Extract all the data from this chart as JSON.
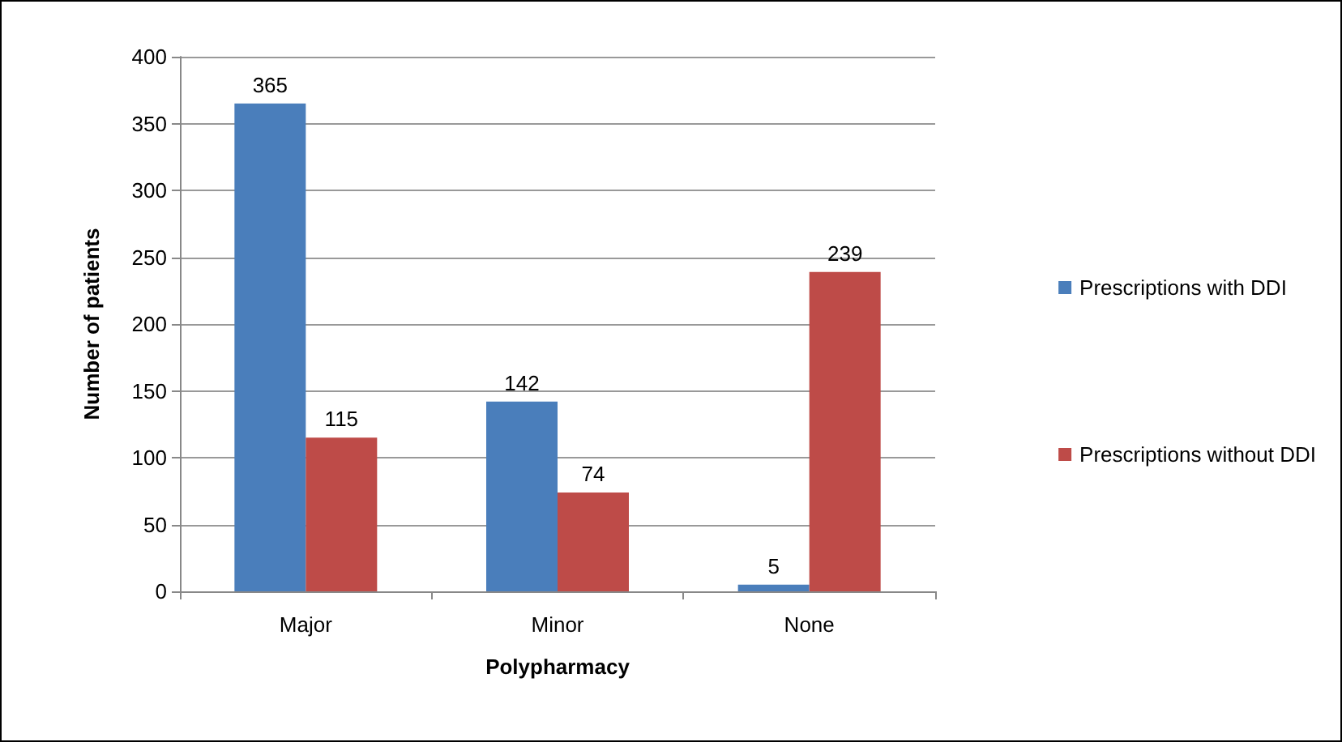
{
  "chart_data": {
    "type": "bar",
    "xlabel": "Polypharmacy",
    "ylabel": "Number of patients",
    "categories": [
      "Major",
      "Minor",
      "None"
    ],
    "series": [
      {
        "name": "Prescriptions with DDI",
        "color": "#4a7ebb",
        "values": [
          365,
          142,
          5
        ]
      },
      {
        "name": "Prescriptions without DDI",
        "color": "#be4b48",
        "values": [
          115,
          74,
          239
        ]
      }
    ],
    "ylim": [
      0,
      400
    ],
    "yticks": [
      0,
      50,
      100,
      150,
      200,
      250,
      300,
      350,
      400
    ],
    "grid": "y",
    "legend": "right",
    "data_labels": true
  }
}
